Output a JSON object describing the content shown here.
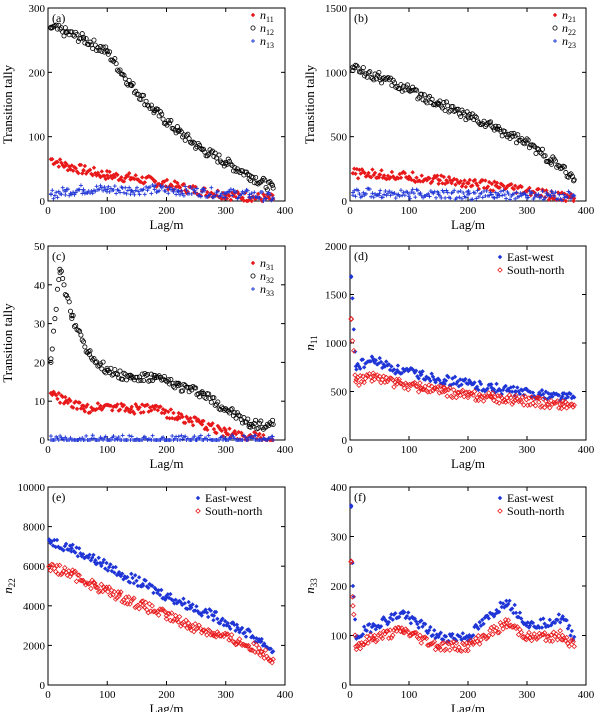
{
  "chart_data": [
    {
      "type": "scatter",
      "panel_label": "(a)",
      "xlabel": "Lag/m",
      "ylabel": "Transition tally",
      "xlim": [
        0,
        400
      ],
      "ylim": [
        0,
        300
      ],
      "xticks": [
        "0",
        "100",
        "200",
        "300",
        "400"
      ],
      "yticks": [
        "0",
        "100",
        "200",
        "300"
      ],
      "legend_position": "top-right",
      "series": [
        {
          "name": "n11",
          "name_sub": "11",
          "marker": "diamond",
          "color": "#e8191b",
          "x": [
            5,
            30,
            60,
            100,
            140,
            180,
            220,
            260,
            300,
            340,
            380
          ],
          "y": [
            65,
            55,
            48,
            40,
            36,
            30,
            22,
            15,
            10,
            6,
            3
          ]
        },
        {
          "name": "n12",
          "name_sub": "12",
          "marker": "circle-open",
          "color": "#000000",
          "x": [
            5,
            30,
            60,
            100,
            140,
            180,
            220,
            260,
            300,
            340,
            380
          ],
          "y": [
            270,
            262,
            252,
            232,
            180,
            140,
            108,
            80,
            60,
            40,
            20
          ]
        },
        {
          "name": "n13",
          "name_sub": "13",
          "marker": "cross",
          "color": "#1f35d6",
          "x": [
            5,
            30,
            60,
            100,
            140,
            180,
            220,
            260,
            300,
            340,
            380
          ],
          "y": [
            10,
            15,
            18,
            18,
            17,
            18,
            16,
            14,
            12,
            10,
            5
          ]
        }
      ]
    },
    {
      "type": "scatter",
      "panel_label": "(b)",
      "xlabel": "Lag/m",
      "ylabel": "Transition tally",
      "xlim": [
        0,
        400
      ],
      "ylim": [
        0,
        1500
      ],
      "xticks": [
        "0",
        "100",
        "200",
        "300",
        "400"
      ],
      "yticks": [
        "0",
        "500",
        "1000",
        "1500"
      ],
      "legend_position": "top-right",
      "series": [
        {
          "name": "n21",
          "name_sub": "21",
          "marker": "diamond",
          "color": "#e8191b",
          "x": [
            5,
            50,
            100,
            150,
            200,
            250,
            300,
            340,
            380
          ],
          "y": [
            215,
            205,
            190,
            165,
            140,
            110,
            75,
            40,
            20
          ]
        },
        {
          "name": "n22",
          "name_sub": "22",
          "marker": "circle-open",
          "color": "#000000",
          "x": [
            5,
            50,
            100,
            150,
            200,
            250,
            300,
            340,
            380
          ],
          "y": [
            1040,
            960,
            860,
            760,
            660,
            560,
            450,
            320,
            165
          ]
        },
        {
          "name": "n23",
          "name_sub": "23",
          "marker": "cross",
          "color": "#1f35d6",
          "x": [
            5,
            50,
            100,
            150,
            200,
            250,
            300,
            340,
            380
          ],
          "y": [
            65,
            60,
            55,
            50,
            48,
            45,
            42,
            40,
            38
          ]
        }
      ]
    },
    {
      "type": "scatter",
      "panel_label": "(c)",
      "xlabel": "Lag/m",
      "ylabel": "Transition tally",
      "xlim": [
        0,
        400
      ],
      "ylim": [
        0,
        50
      ],
      "xticks": [
        "0",
        "100",
        "200",
        "300",
        "400"
      ],
      "yticks": [
        "0",
        "10",
        "20",
        "30",
        "40",
        "50"
      ],
      "legend_position": "top-right",
      "series": [
        {
          "name": "n31",
          "name_sub": "31",
          "marker": "diamond",
          "color": "#e8191b",
          "x": [
            5,
            30,
            60,
            100,
            140,
            180,
            220,
            260,
            300,
            340,
            380
          ],
          "y": [
            12,
            10,
            8,
            9,
            8,
            8,
            6,
            4,
            2,
            1,
            0
          ]
        },
        {
          "name": "n32",
          "name_sub": "32",
          "marker": "circle-open",
          "color": "#000000",
          "x": [
            5,
            20,
            40,
            70,
            100,
            140,
            180,
            220,
            260,
            300,
            340,
            380
          ],
          "y": [
            20,
            44,
            32,
            22,
            18,
            16,
            16,
            14,
            12,
            8,
            4,
            4
          ]
        },
        {
          "name": "n33",
          "name_sub": "33",
          "marker": "cross",
          "color": "#1f35d6",
          "x": [
            5,
            50,
            100,
            150,
            200,
            250,
            300,
            350,
            380
          ],
          "y": [
            0,
            0,
            0,
            0,
            0,
            0,
            0,
            0,
            0
          ]
        }
      ]
    },
    {
      "type": "scatter",
      "panel_label": "(d)",
      "xlabel": "Lag/m",
      "ylabel": "n11",
      "ylabel_sub": "11",
      "xlim": [
        0,
        400
      ],
      "ylim": [
        0,
        2000
      ],
      "xticks": [
        "0",
        "100",
        "200",
        "300",
        "400"
      ],
      "yticks": [
        "0",
        "500",
        "1000",
        "1500",
        "2000"
      ],
      "legend_position": "top-right",
      "series": [
        {
          "name": "East-west",
          "marker": "diamond",
          "color": "#1f35d6",
          "x": [
            2,
            10,
            40,
            80,
            120,
            160,
            200,
            240,
            280,
            320,
            360,
            380
          ],
          "y": [
            1680,
            760,
            820,
            720,
            670,
            620,
            580,
            540,
            500,
            470,
            450,
            440
          ]
        },
        {
          "name": "South-north",
          "marker": "diamond-open",
          "color": "#e8191b",
          "x": [
            2,
            10,
            40,
            80,
            120,
            160,
            200,
            240,
            280,
            320,
            360,
            380
          ],
          "y": [
            1250,
            600,
            660,
            580,
            540,
            500,
            460,
            440,
            410,
            390,
            370,
            360
          ]
        }
      ]
    },
    {
      "type": "scatter",
      "panel_label": "(e)",
      "xlabel": "Lag/m",
      "ylabel": "n22",
      "ylabel_sub": "22",
      "xlim": [
        0,
        400
      ],
      "ylim": [
        0,
        10000
      ],
      "xticks": [
        "0",
        "100",
        "200",
        "300",
        "400"
      ],
      "yticks": [
        "0",
        "2000",
        "4000",
        "6000",
        "8000",
        "10000"
      ],
      "legend_position": "top-right",
      "series": [
        {
          "name": "East-west",
          "marker": "diamond",
          "color": "#1f35d6",
          "x": [
            2,
            40,
            80,
            120,
            160,
            200,
            240,
            280,
            320,
            360,
            380
          ],
          "y": [
            7300,
            6900,
            6300,
            5700,
            5100,
            4500,
            4000,
            3500,
            2900,
            2200,
            1700
          ]
        },
        {
          "name": "South-north",
          "marker": "diamond-open",
          "color": "#e8191b",
          "x": [
            2,
            40,
            80,
            120,
            160,
            200,
            240,
            280,
            320,
            360,
            380
          ],
          "y": [
            6000,
            5600,
            5000,
            4500,
            4000,
            3500,
            3000,
            2600,
            2200,
            1700,
            1300
          ]
        }
      ]
    },
    {
      "type": "scatter",
      "panel_label": "(f)",
      "xlabel": "Lag/m",
      "ylabel": "n33",
      "ylabel_sub": "33",
      "xlim": [
        0,
        400
      ],
      "ylim": [
        0,
        400
      ],
      "xticks": [
        "0",
        "100",
        "200",
        "300",
        "400"
      ],
      "yticks": [
        "0",
        "100",
        "200",
        "300",
        "400"
      ],
      "legend_position": "top-right",
      "series": [
        {
          "name": "East-west",
          "marker": "diamond",
          "color": "#1f35d6",
          "x": [
            2,
            5,
            10,
            40,
            90,
            150,
            200,
            265,
            305,
            360,
            380
          ],
          "y": [
            360,
            200,
            97,
            120,
            145,
            97,
            97,
            170,
            120,
            135,
            97
          ]
        },
        {
          "name": "South-north",
          "marker": "diamond-open",
          "color": "#e8191b",
          "x": [
            2,
            5,
            10,
            40,
            90,
            150,
            200,
            265,
            305,
            360,
            380
          ],
          "y": [
            250,
            160,
            78,
            95,
            110,
            78,
            78,
            125,
            95,
            100,
            78
          ]
        }
      ]
    }
  ]
}
